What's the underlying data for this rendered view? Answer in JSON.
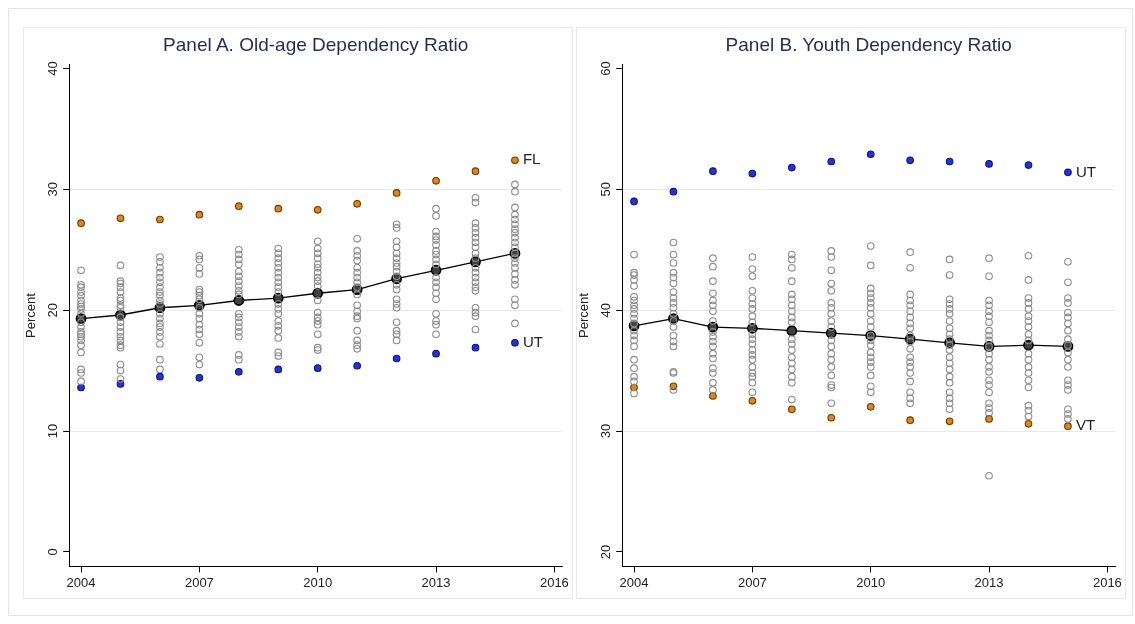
{
  "chart_data": [
    {
      "type": "scatter",
      "title": "Panel A. Old-age Dependency Ratio",
      "ylabel": "Percent",
      "xlim": [
        2003.7,
        2016.2
      ],
      "xticks": [
        2004,
        2007,
        2010,
        2013,
        2016
      ],
      "ylim": [
        -1.2,
        40.3
      ],
      "yticks": [
        0,
        10,
        20,
        30,
        40
      ],
      "grid": "y",
      "legend": false,
      "marker": "circle",
      "series": [
        {
          "type": "scatter",
          "color": "#8c8c8c",
          "x": [
            2004,
            2004,
            2004,
            2004,
            2004,
            2004,
            2004,
            2004,
            2004,
            2004,
            2004,
            2004,
            2004,
            2004,
            2004,
            2004,
            2004,
            2004,
            2004,
            2004,
            2004,
            2005,
            2005,
            2005,
            2005,
            2005,
            2005,
            2005,
            2005,
            2005,
            2005,
            2005,
            2005,
            2005,
            2005,
            2005,
            2005,
            2005,
            2005,
            2005,
            2005,
            2006,
            2006,
            2006,
            2006,
            2006,
            2006,
            2006,
            2006,
            2006,
            2006,
            2006,
            2006,
            2006,
            2006,
            2006,
            2006,
            2006,
            2006,
            2006,
            2006,
            2007,
            2007,
            2007,
            2007,
            2007,
            2007,
            2007,
            2007,
            2007,
            2007,
            2007,
            2007,
            2007,
            2007,
            2007,
            2007,
            2007,
            2008,
            2008,
            2008,
            2008,
            2008,
            2008,
            2008,
            2008,
            2008,
            2008,
            2008,
            2008,
            2008,
            2008,
            2008,
            2008,
            2008,
            2008,
            2009,
            2009,
            2009,
            2009,
            2009,
            2009,
            2009,
            2009,
            2009,
            2009,
            2009,
            2009,
            2009,
            2009,
            2009,
            2009,
            2009,
            2009,
            2009,
            2010,
            2010,
            2010,
            2010,
            2010,
            2010,
            2010,
            2010,
            2010,
            2010,
            2010,
            2010,
            2010,
            2010,
            2010,
            2010,
            2010,
            2010,
            2011,
            2011,
            2011,
            2011,
            2011,
            2011,
            2011,
            2011,
            2011,
            2011,
            2011,
            2011,
            2011,
            2011,
            2011,
            2011,
            2011,
            2011,
            2012,
            2012,
            2012,
            2012,
            2012,
            2012,
            2012,
            2012,
            2012,
            2012,
            2012,
            2012,
            2012,
            2012,
            2012,
            2012,
            2012,
            2012,
            2012,
            2013,
            2013,
            2013,
            2013,
            2013,
            2013,
            2013,
            2013,
            2013,
            2013,
            2013,
            2013,
            2013,
            2013,
            2013,
            2013,
            2013,
            2013,
            2013,
            2014,
            2014,
            2014,
            2014,
            2014,
            2014,
            2014,
            2014,
            2014,
            2014,
            2014,
            2014,
            2014,
            2014,
            2014,
            2014,
            2014,
            2014,
            2014,
            2014,
            2015,
            2015,
            2015,
            2015,
            2015,
            2015,
            2015,
            2015,
            2015,
            2015,
            2015,
            2015,
            2015,
            2015,
            2015,
            2015,
            2015,
            2015,
            2015,
            2015,
            2015
          ],
          "values": [
            23.3,
            22.1,
            21.9,
            21.5,
            21.2,
            20.8,
            20.5,
            20.3,
            20.1,
            19.7,
            19.0,
            18.6,
            18.2,
            18.0,
            17.8,
            17.5,
            17.1,
            16.5,
            15.1,
            14.8,
            14.1,
            23.7,
            22.4,
            22.2,
            21.9,
            21.5,
            21.0,
            20.8,
            20.4,
            20.2,
            19.4,
            19.0,
            18.6,
            18.2,
            17.8,
            17.5,
            17.1,
            16.9,
            15.5,
            15.0,
            14.3,
            24.4,
            24.0,
            23.5,
            23.1,
            22.7,
            22.3,
            21.9,
            21.5,
            21.2,
            20.8,
            20.5,
            19.7,
            19.3,
            18.9,
            18.6,
            18.2,
            17.8,
            17.2,
            15.9,
            15.1,
            24.5,
            24.2,
            23.5,
            23.0,
            21.7,
            21.5,
            21.2,
            20.9,
            20.2,
            19.7,
            19.3,
            18.8,
            18.4,
            18.0,
            17.3,
            16.1,
            15.5,
            25.0,
            24.6,
            24.2,
            23.8,
            23.2,
            22.8,
            22.4,
            22.0,
            21.6,
            21.3,
            19.7,
            19.4,
            19.0,
            18.6,
            18.2,
            17.8,
            16.3,
            15.9,
            25.1,
            24.7,
            24.3,
            23.9,
            23.5,
            23.1,
            22.7,
            22.3,
            21.9,
            21.5,
            20.5,
            20.1,
            19.7,
            19.1,
            18.7,
            18.3,
            17.7,
            16.5,
            16.2,
            25.7,
            25.1,
            24.7,
            24.3,
            23.8,
            23.5,
            23.1,
            22.7,
            22.4,
            22.0,
            20.8,
            19.8,
            19.4,
            19.1,
            18.8,
            18.0,
            16.9,
            16.7,
            25.9,
            24.9,
            24.5,
            24.1,
            23.5,
            23.1,
            22.7,
            22.3,
            21.9,
            21.3,
            20.4,
            19.9,
            19.5,
            19.3,
            18.3,
            17.5,
            17.1,
            16.8,
            27.1,
            26.8,
            25.7,
            25.2,
            24.7,
            24.3,
            23.9,
            23.6,
            23.2,
            22.8,
            22.1,
            21.7,
            20.9,
            20.5,
            20.2,
            19.0,
            18.3,
            18.0,
            17.5,
            28.4,
            27.8,
            26.5,
            26.1,
            25.8,
            25.4,
            24.9,
            24.6,
            24.2,
            23.8,
            22.7,
            22.3,
            21.9,
            21.4,
            20.9,
            19.7,
            19.1,
            18.8,
            18.0,
            29.3,
            28.9,
            27.2,
            26.8,
            26.4,
            26.0,
            25.6,
            25.2,
            24.7,
            24.3,
            23.5,
            23.1,
            22.7,
            22.3,
            21.9,
            21.6,
            20.2,
            19.8,
            19.5,
            18.4,
            30.4,
            29.8,
            28.5,
            27.9,
            27.5,
            27.1,
            26.7,
            26.4,
            26.0,
            25.6,
            25.2,
            24.7,
            24.3,
            23.9,
            23.5,
            23.0,
            22.5,
            22.1,
            20.9,
            20.4,
            18.9
          ]
        },
        {
          "type": "line",
          "color": "#000000",
          "x": [
            2004,
            2005,
            2006,
            2007,
            2008,
            2009,
            2010,
            2011,
            2012,
            2013,
            2014,
            2015
          ],
          "values": [
            19.3,
            19.6,
            20.2,
            20.4,
            20.8,
            21.0,
            21.4,
            21.7,
            22.6,
            23.3,
            24.0,
            24.7
          ]
        },
        {
          "type": "scatter",
          "name": "FL",
          "color": "#e8850a",
          "x": [
            2004,
            2005,
            2006,
            2007,
            2008,
            2009,
            2010,
            2011,
            2012,
            2013,
            2014,
            2015
          ],
          "values": [
            27.2,
            27.6,
            27.5,
            27.9,
            28.6,
            28.4,
            28.3,
            28.8,
            29.7,
            30.7,
            31.5,
            32.4
          ]
        },
        {
          "type": "scatter",
          "name": "UT",
          "color": "#2030f0",
          "x": [
            2004,
            2005,
            2006,
            2007,
            2008,
            2009,
            2010,
            2011,
            2012,
            2013,
            2014,
            2015
          ],
          "values": [
            13.6,
            13.9,
            14.5,
            14.4,
            14.9,
            15.1,
            15.2,
            15.4,
            16.0,
            16.4,
            16.9,
            17.3
          ]
        }
      ]
    },
    {
      "type": "scatter",
      "title": "Panel B. Youth Dependency Ratio",
      "ylabel": "Percent",
      "xlim": [
        2003.7,
        2016.2
      ],
      "xticks": [
        2004,
        2007,
        2010,
        2013,
        2016
      ],
      "ylim": [
        18.8,
        60.3
      ],
      "yticks": [
        20,
        30,
        40,
        50,
        60
      ],
      "grid": "y",
      "legend": false,
      "marker": "circle",
      "series": [
        {
          "type": "scatter",
          "color": "#8c8c8c",
          "x": [
            2004,
            2004,
            2004,
            2004,
            2004,
            2004,
            2004,
            2004,
            2004,
            2004,
            2004,
            2004,
            2004,
            2004,
            2004,
            2004,
            2004,
            2004,
            2004,
            2004,
            2004,
            2005,
            2005,
            2005,
            2005,
            2005,
            2005,
            2005,
            2005,
            2005,
            2005,
            2005,
            2005,
            2005,
            2005,
            2005,
            2005,
            2005,
            2005,
            2005,
            2006,
            2006,
            2006,
            2006,
            2006,
            2006,
            2006,
            2006,
            2006,
            2006,
            2006,
            2006,
            2006,
            2006,
            2006,
            2006,
            2006,
            2006,
            2007,
            2007,
            2007,
            2007,
            2007,
            2007,
            2007,
            2007,
            2007,
            2007,
            2007,
            2007,
            2007,
            2007,
            2007,
            2007,
            2007,
            2007,
            2007,
            2007,
            2008,
            2008,
            2008,
            2008,
            2008,
            2008,
            2008,
            2008,
            2008,
            2008,
            2008,
            2008,
            2008,
            2008,
            2008,
            2008,
            2008,
            2008,
            2008,
            2009,
            2009,
            2009,
            2009,
            2009,
            2009,
            2009,
            2009,
            2009,
            2009,
            2009,
            2009,
            2009,
            2009,
            2009,
            2009,
            2009,
            2009,
            2009,
            2010,
            2010,
            2010,
            2010,
            2010,
            2010,
            2010,
            2010,
            2010,
            2010,
            2010,
            2010,
            2010,
            2010,
            2010,
            2010,
            2010,
            2010,
            2010,
            2010,
            2011,
            2011,
            2011,
            2011,
            2011,
            2011,
            2011,
            2011,
            2011,
            2011,
            2011,
            2011,
            2011,
            2011,
            2011,
            2011,
            2011,
            2011,
            2011,
            2011,
            2012,
            2012,
            2012,
            2012,
            2012,
            2012,
            2012,
            2012,
            2012,
            2012,
            2012,
            2012,
            2012,
            2012,
            2012,
            2012,
            2012,
            2012,
            2012,
            2012,
            2012,
            2013,
            2013,
            2013,
            2013,
            2013,
            2013,
            2013,
            2013,
            2013,
            2013,
            2013,
            2013,
            2013,
            2013,
            2013,
            2013,
            2013,
            2013,
            2013,
            2013,
            2013,
            2013,
            2014,
            2014,
            2014,
            2014,
            2014,
            2014,
            2014,
            2014,
            2014,
            2014,
            2014,
            2014,
            2014,
            2014,
            2014,
            2014,
            2014,
            2014,
            2014,
            2015,
            2015,
            2015,
            2015,
            2015,
            2015,
            2015,
            2015,
            2015,
            2015,
            2015,
            2015,
            2015,
            2015,
            2015,
            2015,
            2015,
            2015,
            2015
          ],
          "values": [
            44.6,
            43.1,
            42.9,
            42.5,
            42.0,
            41.1,
            40.8,
            40.4,
            40.1,
            39.7,
            39.3,
            38.9,
            38.3,
            37.9,
            37.5,
            37.0,
            35.9,
            35.2,
            34.5,
            34.1,
            33.1,
            45.6,
            44.6,
            43.9,
            43.1,
            42.7,
            42.2,
            41.5,
            41.0,
            40.6,
            40.2,
            39.7,
            39.1,
            38.6,
            37.9,
            37.4,
            37.0,
            34.9,
            34.8,
            33.4,
            44.3,
            43.6,
            42.4,
            41.4,
            40.8,
            40.4,
            39.9,
            39.1,
            38.2,
            37.8,
            37.4,
            37.0,
            36.4,
            36.0,
            35.2,
            34.8,
            34.0,
            33.4,
            44.4,
            43.4,
            42.8,
            41.6,
            41.0,
            40.5,
            40.1,
            39.5,
            39.0,
            38.0,
            37.6,
            37.2,
            36.7,
            36.3,
            35.9,
            35.3,
            34.8,
            34.5,
            34.0,
            33.2,
            44.6,
            44.2,
            43.5,
            42.4,
            41.3,
            40.9,
            40.4,
            39.9,
            39.4,
            39.0,
            37.6,
            37.2,
            36.7,
            36.1,
            35.6,
            35.1,
            34.5,
            34.0,
            32.6,
            44.9,
            44.4,
            43.3,
            42.2,
            41.6,
            40.6,
            40.2,
            39.7,
            39.1,
            38.6,
            37.5,
            37.0,
            36.4,
            35.9,
            35.3,
            34.6,
            33.8,
            33.6,
            32.3,
            45.3,
            43.7,
            41.8,
            41.4,
            41.0,
            40.6,
            40.2,
            39.7,
            39.1,
            38.6,
            37.9,
            37.5,
            37.1,
            36.5,
            36.1,
            35.7,
            35.3,
            34.6,
            33.7,
            33.2,
            44.8,
            43.5,
            41.3,
            40.8,
            40.4,
            39.9,
            39.4,
            38.9,
            38.5,
            37.9,
            37.4,
            36.8,
            36.1,
            35.7,
            35.3,
            34.8,
            34.1,
            33.2,
            32.7,
            32.3,
            44.2,
            42.9,
            40.9,
            40.5,
            40.1,
            39.7,
            39.1,
            38.5,
            38.0,
            37.6,
            37.1,
            36.7,
            36.1,
            35.6,
            35.1,
            34.5,
            34.0,
            33.2,
            32.7,
            32.3,
            31.8,
            44.3,
            42.8,
            40.8,
            40.4,
            39.9,
            39.5,
            39.0,
            38.3,
            37.9,
            37.5,
            37.0,
            36.4,
            35.9,
            35.3,
            34.9,
            34.2,
            33.8,
            33.2,
            32.3,
            31.9,
            31.5,
            26.3,
            44.5,
            42.5,
            41.0,
            40.6,
            40.1,
            39.5,
            39.1,
            38.6,
            38.0,
            37.5,
            36.4,
            35.9,
            35.3,
            34.8,
            34.2,
            33.6,
            32.1,
            31.7,
            31.2,
            44.0,
            42.3,
            41.0,
            40.6,
            39.8,
            39.4,
            38.9,
            38.3,
            37.6,
            37.1,
            36.5,
            35.9,
            35.3,
            34.2,
            33.8,
            33.4,
            31.8,
            31.4,
            31.0
          ]
        },
        {
          "type": "line",
          "color": "#000000",
          "x": [
            2004,
            2005,
            2006,
            2007,
            2008,
            2009,
            2010,
            2011,
            2012,
            2013,
            2014,
            2015
          ],
          "values": [
            38.7,
            39.3,
            38.6,
            38.5,
            38.3,
            38.1,
            37.9,
            37.6,
            37.3,
            37.0,
            37.1,
            37.0
          ]
        },
        {
          "type": "scatter",
          "name": "UT",
          "color": "#2030f0",
          "x": [
            2004,
            2005,
            2006,
            2007,
            2008,
            2009,
            2010,
            2011,
            2012,
            2013,
            2014,
            2015
          ],
          "values": [
            49.0,
            49.8,
            51.5,
            51.3,
            51.8,
            52.3,
            52.9,
            52.4,
            52.3,
            52.1,
            52.0,
            51.4
          ]
        },
        {
          "type": "scatter",
          "name": "VT",
          "color": "#e8850a",
          "x": [
            2004,
            2005,
            2006,
            2007,
            2008,
            2009,
            2010,
            2011,
            2012,
            2013,
            2014,
            2015
          ],
          "values": [
            33.6,
            33.7,
            32.9,
            32.5,
            31.8,
            31.1,
            32.0,
            30.9,
            30.8,
            31.0,
            30.6,
            30.4
          ]
        }
      ]
    }
  ]
}
